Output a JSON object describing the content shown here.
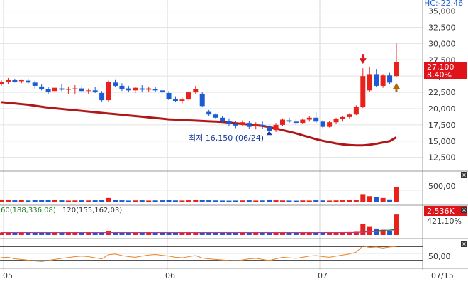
{
  "chart_data": {
    "type": "candlestick",
    "price_axis": {
      "ticks": [
        "35,000",
        "32,500",
        "30,000",
        "27,500",
        "25,000",
        "22,500",
        "20,000",
        "17,500",
        "15,000",
        "12,500"
      ],
      "tick_values": [
        35000,
        32500,
        30000,
        27500,
        25000,
        22500,
        20000,
        17500,
        15000,
        12500
      ],
      "ylim": [
        10500,
        36700
      ],
      "top_label": "HC:-22,46"
    },
    "current_price": {
      "price": "27,100",
      "change": "8,40%",
      "value": 27100
    },
    "low_annotation": {
      "text": "최저 16,150 (06/24)",
      "value": 16150
    },
    "x_labels": [
      "05",
      "06",
      "07",
      "07/15"
    ],
    "candles": [
      [
        23800,
        24400,
        23500,
        24100
      ],
      [
        24100,
        24700,
        23700,
        24400
      ],
      [
        24400,
        24600,
        24000,
        24100
      ],
      [
        24200,
        24500,
        23900,
        24400
      ],
      [
        24300,
        24600,
        23800,
        24000
      ],
      [
        24000,
        24300,
        23100,
        23500
      ],
      [
        23400,
        23700,
        22800,
        23000
      ],
      [
        23000,
        23300,
        22300,
        22600
      ],
      [
        22700,
        23400,
        22400,
        23200
      ],
      [
        23100,
        23800,
        22700,
        22900
      ],
      [
        22900,
        23400,
        22300,
        23000
      ],
      [
        23000,
        23600,
        22300,
        23100
      ],
      [
        23100,
        23500,
        22500,
        22700
      ],
      [
        22700,
        23100,
        22300,
        22800
      ],
      [
        22800,
        23300,
        22400,
        22600
      ],
      [
        22400,
        22700,
        21100,
        21300
      ],
      [
        21300,
        24300,
        21000,
        24100
      ],
      [
        24000,
        24500,
        23300,
        23500
      ],
      [
        23500,
        23900,
        22700,
        23000
      ],
      [
        23100,
        23500,
        22500,
        22800
      ],
      [
        22800,
        23400,
        22400,
        23200
      ],
      [
        23100,
        23600,
        22500,
        22900
      ],
      [
        22900,
        23400,
        22600,
        23100
      ],
      [
        23000,
        23300,
        22500,
        22800
      ],
      [
        22800,
        23100,
        22100,
        22500
      ],
      [
        22400,
        22700,
        21300,
        21500
      ],
      [
        21500,
        21900,
        21000,
        21200
      ],
      [
        21200,
        21700,
        20800,
        21400
      ],
      [
        21400,
        22700,
        21200,
        22500
      ],
      [
        22500,
        23500,
        22300,
        23000
      ],
      [
        22300,
        22500,
        20300,
        20400
      ],
      [
        19500,
        19800,
        18800,
        19100
      ],
      [
        19100,
        19300,
        18400,
        18600
      ],
      [
        18600,
        18900,
        17800,
        18100
      ],
      [
        18100,
        18500,
        17300,
        17600
      ],
      [
        17600,
        18100,
        17000,
        17400
      ],
      [
        17500,
        18200,
        17300,
        17900
      ],
      [
        17800,
        18100,
        16900,
        17200
      ],
      [
        17300,
        17900,
        16800,
        17500
      ],
      [
        17500,
        18000,
        16900,
        17300
      ],
      [
        17200,
        17600,
        16150,
        16600
      ],
      [
        16700,
        17800,
        16400,
        17500
      ],
      [
        17500,
        18500,
        17300,
        18300
      ],
      [
        18200,
        18600,
        17800,
        18000
      ],
      [
        18000,
        18400,
        17500,
        17800
      ],
      [
        17800,
        18500,
        17600,
        18300
      ],
      [
        18300,
        18800,
        18000,
        18600
      ],
      [
        18600,
        19400,
        17800,
        18000
      ],
      [
        18000,
        18200,
        17000,
        17200
      ],
      [
        17200,
        18100,
        17100,
        17900
      ],
      [
        17900,
        18600,
        17700,
        18400
      ],
      [
        18400,
        18900,
        18000,
        18700
      ],
      [
        18700,
        19300,
        18400,
        19100
      ],
      [
        19100,
        20500,
        19000,
        20300
      ],
      [
        20300,
        26200,
        20100,
        25000
      ],
      [
        22800,
        26400,
        22600,
        25300
      ],
      [
        25300,
        26100,
        23300,
        23500
      ],
      [
        23500,
        25300,
        23200,
        25100
      ],
      [
        25100,
        25500,
        23700,
        24000
      ],
      [
        25000,
        30000,
        24800,
        27100
      ]
    ],
    "ma_line": [
      21000,
      20900,
      20800,
      20700,
      20600,
      20450,
      20300,
      20150,
      20050,
      19950,
      19850,
      19750,
      19650,
      19550,
      19450,
      19350,
      19250,
      19150,
      19050,
      18950,
      18850,
      18750,
      18650,
      18550,
      18450,
      18350,
      18300,
      18250,
      18200,
      18150,
      18100,
      18050,
      18000,
      17950,
      17850,
      17750,
      17650,
      17550,
      17450,
      17350,
      17150,
      16950,
      16700,
      16450,
      16200,
      15900,
      15600,
      15300,
      15050,
      14850,
      14650,
      14500,
      14400,
      14350,
      14350,
      14450,
      14600,
      14800,
      15000,
      15600
    ],
    "arrows": {
      "down_index": 54,
      "up_index": 59
    },
    "volume_panel": {
      "tick": "500,00",
      "ylim": [
        0,
        1150
      ],
      "values": [
        80,
        95,
        60,
        70,
        55,
        80,
        65,
        70,
        75,
        60,
        50,
        55,
        60,
        55,
        60,
        70,
        160,
        90,
        60,
        50,
        55,
        60,
        50,
        55,
        60,
        70,
        55,
        50,
        60,
        65,
        80,
        60,
        55,
        50,
        45,
        50,
        55,
        60,
        50,
        55,
        95,
        60,
        55,
        50,
        45,
        55,
        50,
        60,
        55,
        50,
        55,
        60,
        65,
        80,
        330,
        240,
        200,
        160,
        100,
        650
      ]
    },
    "turnover_panel": {
      "legend_a": "60(188,336,08)",
      "legend_b": "120(155,162,03)",
      "value_box": "2,536K",
      "pct": "421,10%",
      "ylim": [
        0,
        2900
      ],
      "values": [
        300,
        320,
        300,
        310,
        290,
        300,
        310,
        300,
        290,
        300,
        290,
        300,
        310,
        300,
        290,
        300,
        450,
        320,
        300,
        290,
        300,
        310,
        300,
        290,
        300,
        310,
        300,
        290,
        300,
        310,
        290,
        280,
        290,
        300,
        280,
        290,
        300,
        280,
        290,
        300,
        330,
        300,
        290,
        280,
        270,
        290,
        300,
        310,
        290,
        280,
        300,
        310,
        320,
        400,
        1400,
        1000,
        800,
        650,
        550,
        2536
      ],
      "ma_a": [
        300,
        300,
        300,
        300,
        300,
        300,
        300,
        300,
        300,
        300,
        300,
        300,
        300,
        300,
        300,
        300,
        300,
        300,
        300,
        300,
        300,
        300,
        300,
        300,
        300,
        300,
        300,
        300,
        300,
        300,
        300,
        300,
        300,
        300,
        300,
        300,
        300,
        300,
        300,
        300,
        300,
        300,
        300,
        300,
        300,
        300,
        300,
        300,
        300,
        300,
        300,
        305,
        310,
        320,
        380,
        450,
        520,
        580,
        620,
        700
      ],
      "ma_b": [
        310,
        310,
        310,
        310,
        310,
        310,
        310,
        310,
        310,
        310,
        310,
        310,
        310,
        310,
        310,
        310,
        310,
        310,
        310,
        310,
        310,
        310,
        310,
        310,
        310,
        310,
        310,
        310,
        310,
        310,
        310,
        310,
        310,
        310,
        310,
        310,
        310,
        310,
        310,
        310,
        310,
        310,
        310,
        310,
        310,
        310,
        310,
        310,
        310,
        310,
        310,
        312,
        315,
        320,
        350,
        380,
        420,
        460,
        500,
        560
      ]
    },
    "oscillator_panel": {
      "tick": "50,00",
      "ylim": [
        0,
        100
      ],
      "upper_line": 75,
      "lower_line": 25,
      "values": [
        35,
        36,
        30,
        28,
        25,
        22,
        20,
        24,
        28,
        32,
        35,
        38,
        40,
        38,
        34,
        30,
        45,
        48,
        42,
        38,
        36,
        40,
        44,
        46,
        43,
        40,
        36,
        34,
        38,
        42,
        33,
        30,
        28,
        26,
        24,
        22,
        26,
        30,
        32,
        28,
        24,
        30,
        36,
        34,
        32,
        36,
        40,
        42,
        38,
        36,
        40,
        44,
        48,
        55,
        78,
        72,
        74,
        70,
        74,
        76
      ]
    },
    "grid": true,
    "colors": {
      "up": "#e8211b",
      "down": "#1b5bd3",
      "ma": "#b01818",
      "tag": "#e0121a",
      "osc": "#e6842a",
      "axis_text": "#333333"
    }
  }
}
